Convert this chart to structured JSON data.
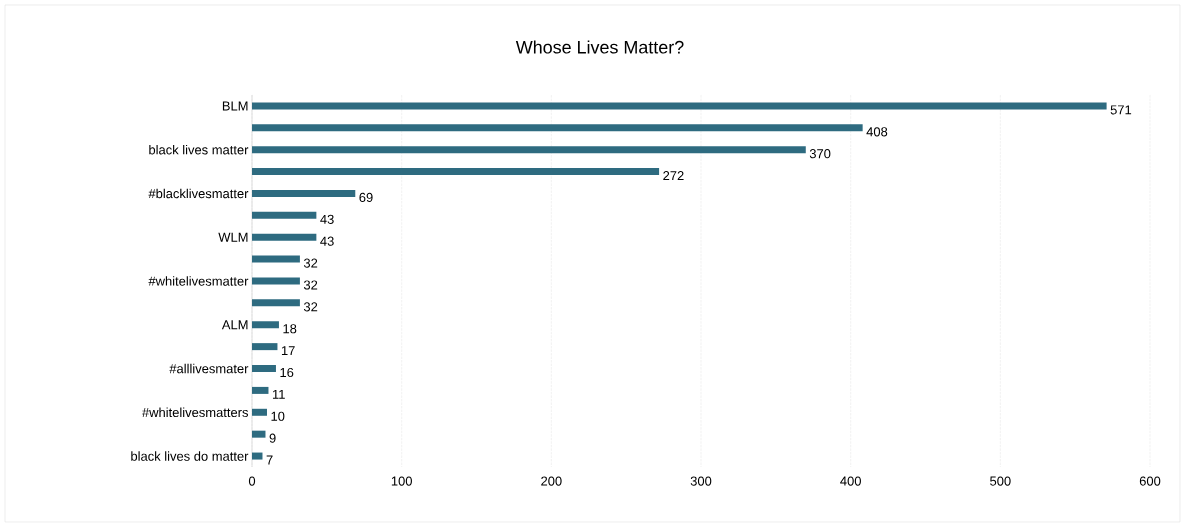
{
  "chart_data": {
    "type": "bar",
    "orientation": "horizontal",
    "title": "Whose Lives Matter?",
    "categories": [
      "BLM",
      null,
      "black lives matter",
      null,
      "#blacklivesmatter",
      null,
      "WLM",
      null,
      "#whitelivesmatter",
      null,
      "ALM",
      null,
      "#alllivesmater",
      null,
      "#whitelivesmatters",
      null,
      "black lives do matter"
    ],
    "values": [
      571,
      408,
      370,
      272,
      69,
      43,
      43,
      32,
      32,
      32,
      18,
      17,
      16,
      11,
      10,
      9,
      7
    ],
    "color": "#2e6b80",
    "xlim": [
      0,
      600
    ],
    "xticks": [
      0,
      100,
      200,
      300,
      400,
      500,
      600
    ],
    "grid": "x",
    "data_labels": true
  }
}
